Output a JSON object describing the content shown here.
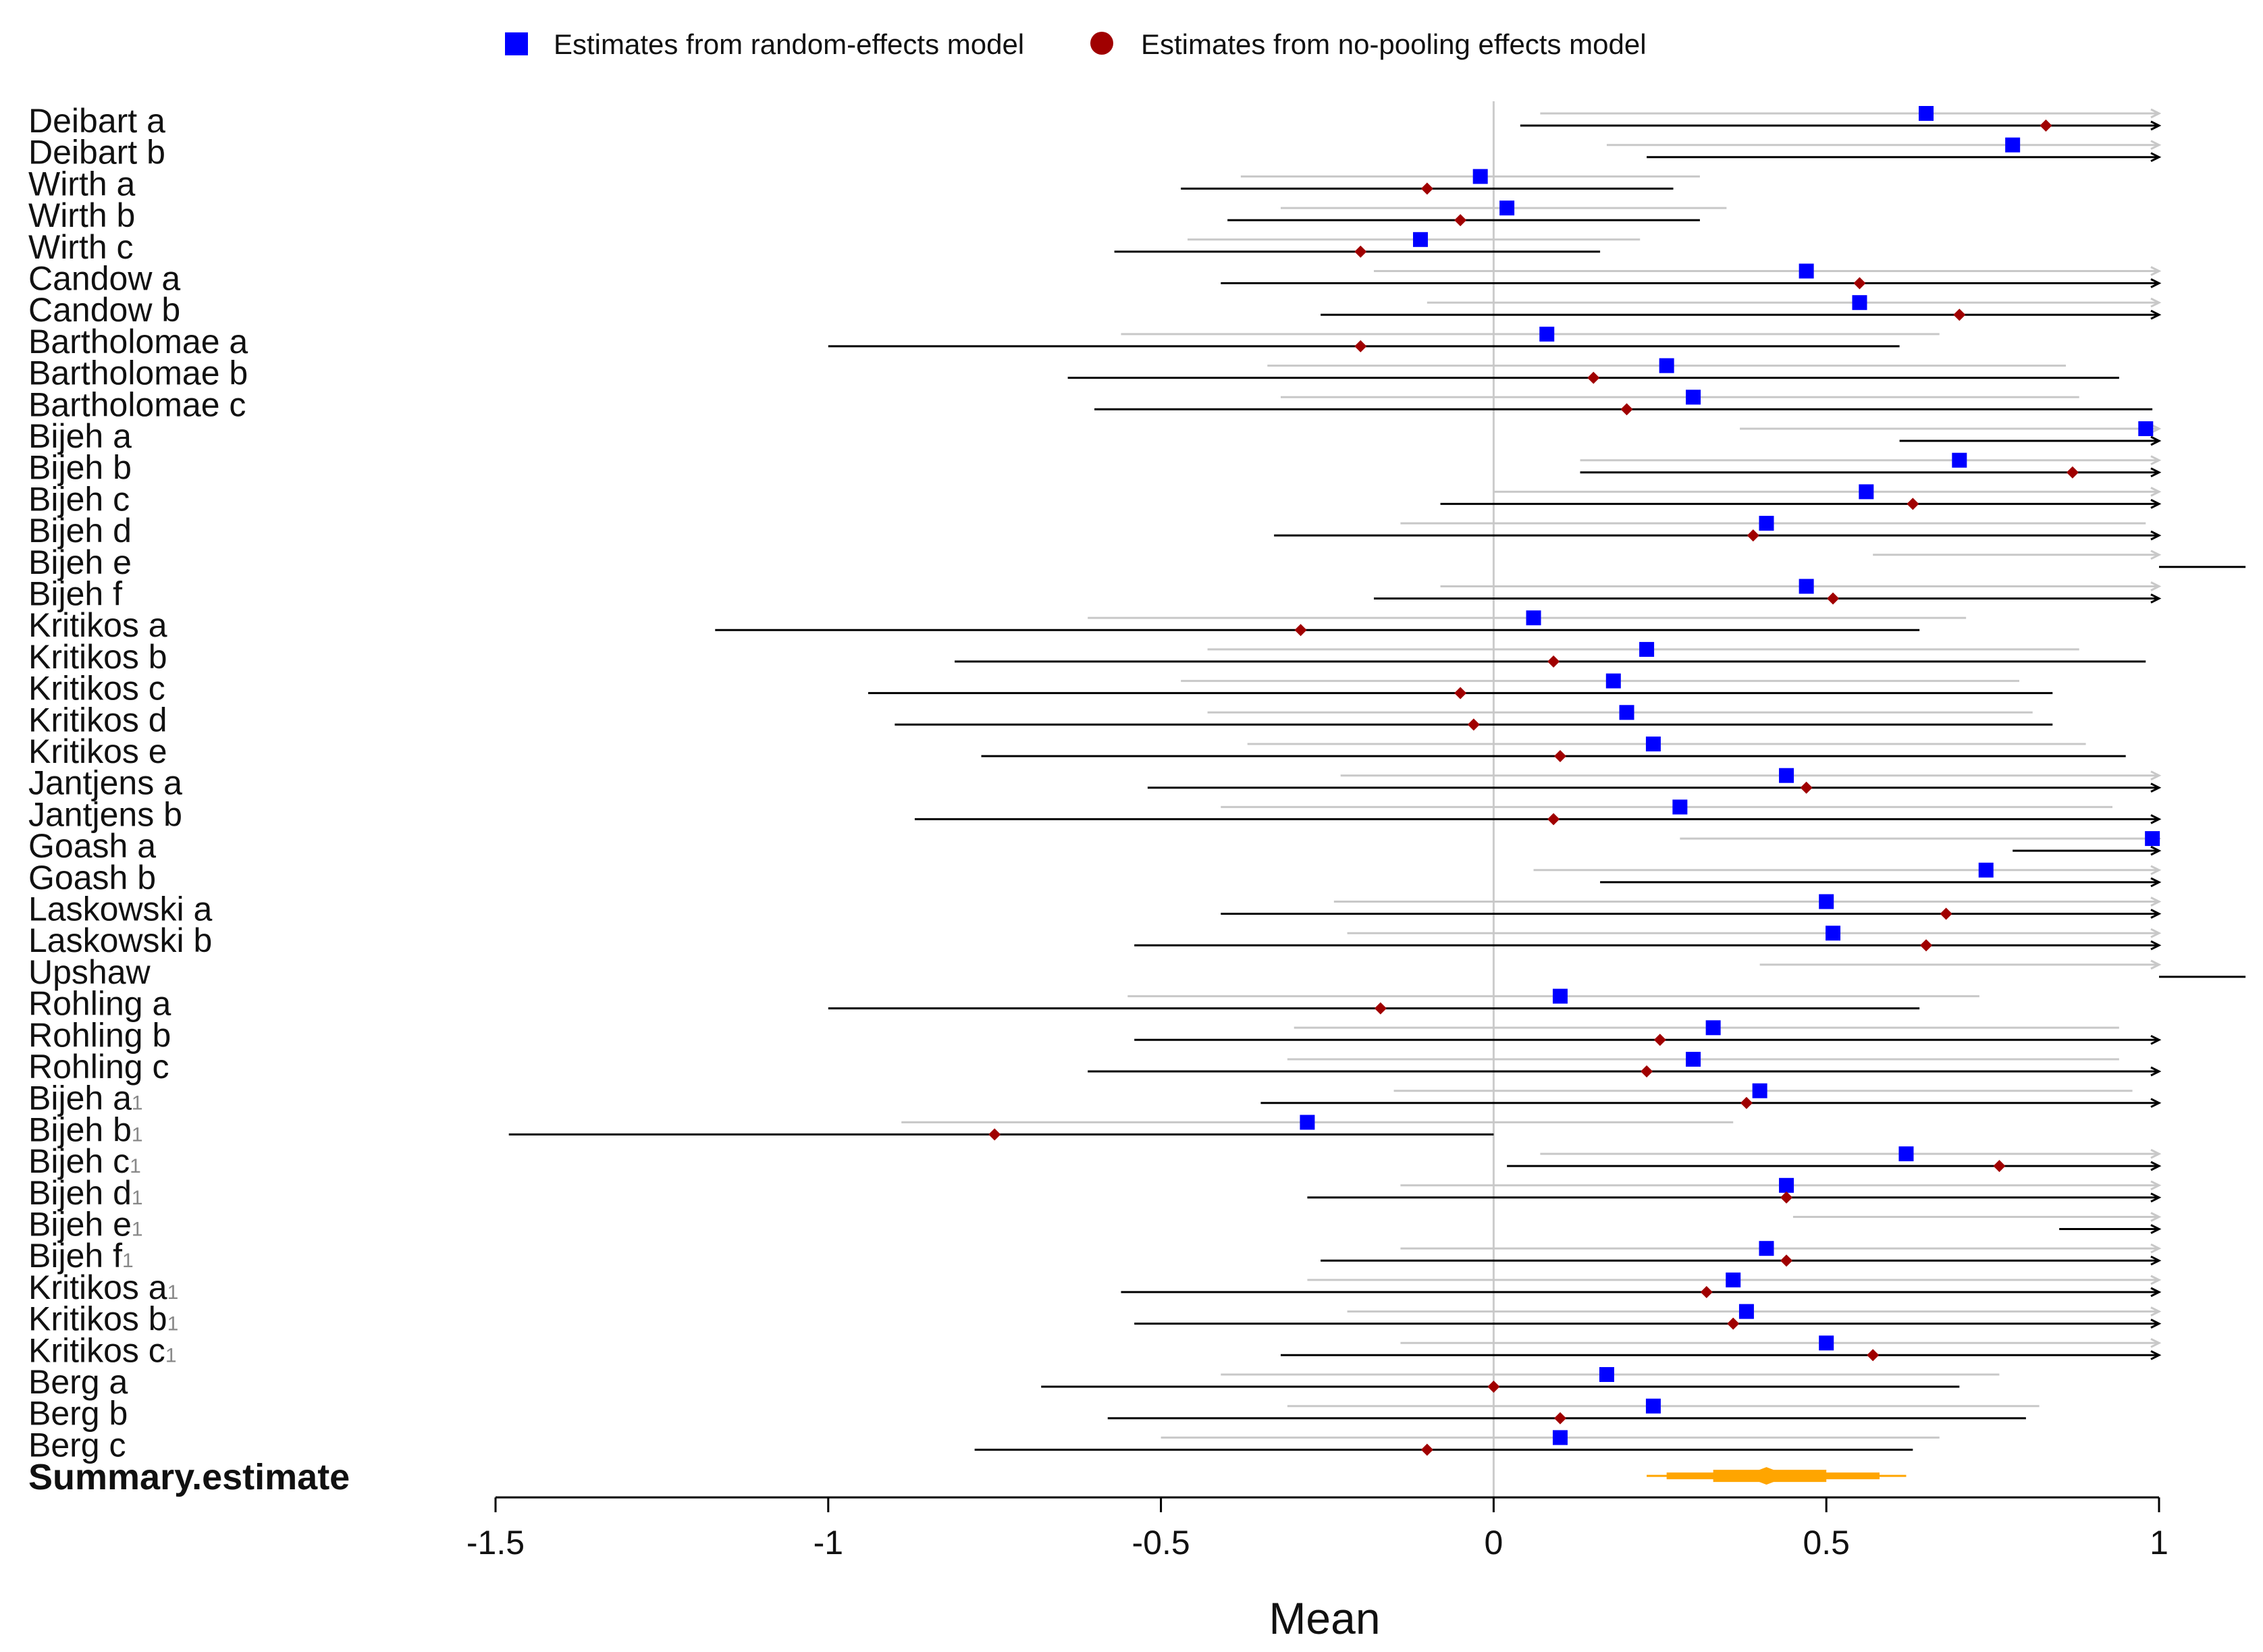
{
  "chart_data": {
    "type": "forest",
    "xlabel": "Mean",
    "xlim": [
      -1.5,
      1.0
    ],
    "xticks": [
      "-1.5",
      "-1",
      "-0.5",
      "0",
      "0.5",
      "1"
    ],
    "xtick_values": [
      -1.5,
      -1,
      -0.5,
      0,
      0.5,
      1
    ],
    "reference_line": 0,
    "legend": {
      "placement": "top",
      "items": [
        {
          "name": "Estimates from random-effects model",
          "marker": "square",
          "color": "#0000ff"
        },
        {
          "name": "Estimates from no-pooling effects model",
          "marker": "circle",
          "color": "#a00000"
        }
      ]
    },
    "colors": {
      "random": "#0000ff",
      "nopool": "#a00000",
      "random_ci": "#c8c8c8",
      "nopool_ci": "#000000",
      "summary": "#ffa500"
    },
    "rows": [
      {
        "label": "Deibart a",
        "sup": "",
        "re": 0.65,
        "re_ci": [
          0.07,
          1.0
        ],
        "np": 0.83,
        "np_ci": [
          0.04,
          1.0
        ]
      },
      {
        "label": "Deibart b",
        "sup": "",
        "re": 0.78,
        "re_ci": [
          0.17,
          1.0
        ],
        "np": null,
        "np_ci": [
          0.23,
          1.0
        ]
      },
      {
        "label": "Wirth a",
        "sup": "",
        "re": -0.02,
        "re_ci": [
          -0.38,
          0.31
        ],
        "np": -0.1,
        "np_ci": [
          -0.47,
          0.27
        ]
      },
      {
        "label": "Wirth b",
        "sup": "",
        "re": 0.02,
        "re_ci": [
          -0.32,
          0.35
        ],
        "np": -0.05,
        "np_ci": [
          -0.4,
          0.31
        ]
      },
      {
        "label": "Wirth c",
        "sup": "",
        "re": -0.11,
        "re_ci": [
          -0.46,
          0.22
        ],
        "np": -0.2,
        "np_ci": [
          -0.57,
          0.16
        ]
      },
      {
        "label": "Candow a",
        "sup": "",
        "re": 0.47,
        "re_ci": [
          -0.18,
          1.0
        ],
        "np": 0.55,
        "np_ci": [
          -0.41,
          1.0
        ]
      },
      {
        "label": "Candow b",
        "sup": "",
        "re": 0.55,
        "re_ci": [
          -0.1,
          1.0
        ],
        "np": 0.7,
        "np_ci": [
          -0.26,
          1.0
        ]
      },
      {
        "label": "Bartholomae a",
        "sup": "",
        "re": 0.08,
        "re_ci": [
          -0.56,
          0.67
        ],
        "np": -0.2,
        "np_ci": [
          -1.0,
          0.61
        ]
      },
      {
        "label": "Bartholomae b",
        "sup": "",
        "re": 0.26,
        "re_ci": [
          -0.34,
          0.86
        ],
        "np": 0.15,
        "np_ci": [
          -0.64,
          0.94
        ]
      },
      {
        "label": "Bartholomae c",
        "sup": "",
        "re": 0.3,
        "re_ci": [
          -0.32,
          0.88
        ],
        "np": 0.2,
        "np_ci": [
          -0.6,
          0.99
        ]
      },
      {
        "label": "Bijeh a",
        "sup": "",
        "re": 0.98,
        "re_ci": [
          0.37,
          1.0
        ],
        "np": null,
        "np_ci": [
          0.61,
          1.0
        ]
      },
      {
        "label": "Bijeh b",
        "sup": "",
        "re": 0.7,
        "re_ci": [
          0.13,
          1.0
        ],
        "np": 0.87,
        "np_ci": [
          0.13,
          1.0
        ]
      },
      {
        "label": "Bijeh c",
        "sup": "",
        "re": 0.56,
        "re_ci": [
          0.0,
          1.0
        ],
        "np": 0.63,
        "np_ci": [
          -0.08,
          1.0
        ]
      },
      {
        "label": "Bijeh d",
        "sup": "",
        "re": 0.41,
        "re_ci": [
          -0.14,
          0.98
        ],
        "np": 0.39,
        "np_ci": [
          -0.33,
          1.0
        ]
      },
      {
        "label": "Bijeh e",
        "sup": "",
        "re": null,
        "re_ci": [
          0.57,
          1.0
        ],
        "np": null,
        "np_ci": [
          1.0,
          1.13
        ]
      },
      {
        "label": "Bijeh f",
        "sup": "",
        "re": 0.47,
        "re_ci": [
          -0.08,
          1.0
        ],
        "np": 0.51,
        "np_ci": [
          -0.18,
          1.0
        ]
      },
      {
        "label": "Kritikos a",
        "sup": "",
        "re": 0.06,
        "re_ci": [
          -0.61,
          0.71
        ],
        "np": -0.29,
        "np_ci": [
          -1.17,
          0.64
        ]
      },
      {
        "label": "Kritikos b",
        "sup": "",
        "re": 0.23,
        "re_ci": [
          -0.43,
          0.88
        ],
        "np": 0.09,
        "np_ci": [
          -0.81,
          0.98
        ]
      },
      {
        "label": "Kritikos c",
        "sup": "",
        "re": 0.18,
        "re_ci": [
          -0.47,
          0.79
        ],
        "np": -0.05,
        "np_ci": [
          -0.94,
          0.84
        ]
      },
      {
        "label": "Kritikos d",
        "sup": "",
        "re": 0.2,
        "re_ci": [
          -0.43,
          0.81
        ],
        "np": -0.03,
        "np_ci": [
          -0.9,
          0.84
        ]
      },
      {
        "label": "Kritikos e",
        "sup": "",
        "re": 0.24,
        "re_ci": [
          -0.37,
          0.89
        ],
        "np": 0.1,
        "np_ci": [
          -0.77,
          0.95
        ]
      },
      {
        "label": "Jantjens a",
        "sup": "",
        "re": 0.44,
        "re_ci": [
          -0.23,
          1.0
        ],
        "np": 0.47,
        "np_ci": [
          -0.52,
          1.0
        ]
      },
      {
        "label": "Jantjens b",
        "sup": "",
        "re": 0.28,
        "re_ci": [
          -0.41,
          0.93
        ],
        "np": 0.09,
        "np_ci": [
          -0.87,
          1.0
        ]
      },
      {
        "label": "Goash a",
        "sup": "",
        "re": 0.99,
        "re_ci": [
          0.28,
          1.0
        ],
        "np": null,
        "np_ci": [
          0.78,
          1.0
        ]
      },
      {
        "label": "Goash b",
        "sup": "",
        "re": 0.74,
        "re_ci": [
          0.06,
          1.0
        ],
        "np": null,
        "np_ci": [
          0.16,
          1.0
        ]
      },
      {
        "label": "Laskowski a",
        "sup": "",
        "re": 0.5,
        "re_ci": [
          -0.24,
          1.0
        ],
        "np": 0.68,
        "np_ci": [
          -0.41,
          1.0
        ]
      },
      {
        "label": "Laskowski b",
        "sup": "",
        "re": 0.51,
        "re_ci": [
          -0.22,
          1.0
        ],
        "np": 0.65,
        "np_ci": [
          -0.54,
          1.0
        ]
      },
      {
        "label": "Upshaw",
        "sup": "",
        "re": null,
        "re_ci": [
          0.4,
          1.0
        ],
        "np": null,
        "np_ci": [
          1.0,
          1.13
        ]
      },
      {
        "label": "Rohling a",
        "sup": "",
        "re": 0.1,
        "re_ci": [
          -0.55,
          0.73
        ],
        "np": -0.17,
        "np_ci": [
          -1.0,
          0.64
        ]
      },
      {
        "label": "Rohling b",
        "sup": "",
        "re": 0.33,
        "re_ci": [
          -0.3,
          0.94
        ],
        "np": 0.25,
        "np_ci": [
          -0.54,
          1.0
        ]
      },
      {
        "label": "Rohling c",
        "sup": "",
        "re": 0.3,
        "re_ci": [
          -0.31,
          0.94
        ],
        "np": 0.23,
        "np_ci": [
          -0.61,
          1.0
        ]
      },
      {
        "label": "Bijeh a",
        "sup": "1",
        "re": 0.4,
        "re_ci": [
          -0.15,
          0.96
        ],
        "np": 0.38,
        "np_ci": [
          -0.35,
          1.0
        ]
      },
      {
        "label": "Bijeh b",
        "sup": "1",
        "re": -0.28,
        "re_ci": [
          -0.89,
          0.36
        ],
        "np": -0.75,
        "np_ci": [
          -1.48,
          0.0
        ]
      },
      {
        "label": "Bijeh c",
        "sup": "1",
        "re": 0.62,
        "re_ci": [
          0.07,
          1.0
        ],
        "np": 0.76,
        "np_ci": [
          0.02,
          1.0
        ]
      },
      {
        "label": "Bijeh d",
        "sup": "1",
        "re": 0.44,
        "re_ci": [
          -0.14,
          1.0
        ],
        "np": 0.44,
        "np_ci": [
          -0.28,
          1.0
        ]
      },
      {
        "label": "Bijeh e",
        "sup": "1",
        "re": null,
        "re_ci": [
          0.45,
          1.0
        ],
        "np": null,
        "np_ci": [
          0.85,
          1.0
        ]
      },
      {
        "label": "Bijeh f",
        "sup": "1",
        "re": 0.41,
        "re_ci": [
          -0.14,
          1.0
        ],
        "np": 0.44,
        "np_ci": [
          -0.26,
          1.0
        ]
      },
      {
        "label": "Kritikos a",
        "sup": "1",
        "re": 0.36,
        "re_ci": [
          -0.28,
          1.0
        ],
        "np": 0.32,
        "np_ci": [
          -0.56,
          1.0
        ]
      },
      {
        "label": "Kritikos b",
        "sup": "1",
        "re": 0.38,
        "re_ci": [
          -0.22,
          1.0
        ],
        "np": 0.36,
        "np_ci": [
          -0.54,
          1.0
        ]
      },
      {
        "label": "Kritikos c",
        "sup": "1",
        "re": 0.5,
        "re_ci": [
          -0.14,
          1.0
        ],
        "np": 0.57,
        "np_ci": [
          -0.32,
          1.0
        ]
      },
      {
        "label": "Berg a",
        "sup": "",
        "re": 0.17,
        "re_ci": [
          -0.41,
          0.76
        ],
        "np": 0.0,
        "np_ci": [
          -0.68,
          0.7
        ]
      },
      {
        "label": "Berg b",
        "sup": "",
        "re": 0.24,
        "re_ci": [
          -0.31,
          0.82
        ],
        "np": 0.1,
        "np_ci": [
          -0.58,
          0.8
        ]
      },
      {
        "label": "Berg c",
        "sup": "",
        "re": 0.1,
        "re_ci": [
          -0.5,
          0.67
        ],
        "np": -0.1,
        "np_ci": [
          -0.78,
          0.63
        ]
      }
    ],
    "summary": {
      "label": "Summary.estimate",
      "mean": 0.41,
      "inner": [
        0.33,
        0.5
      ],
      "mid": [
        0.26,
        0.58
      ],
      "outer": [
        0.23,
        0.62
      ]
    }
  }
}
